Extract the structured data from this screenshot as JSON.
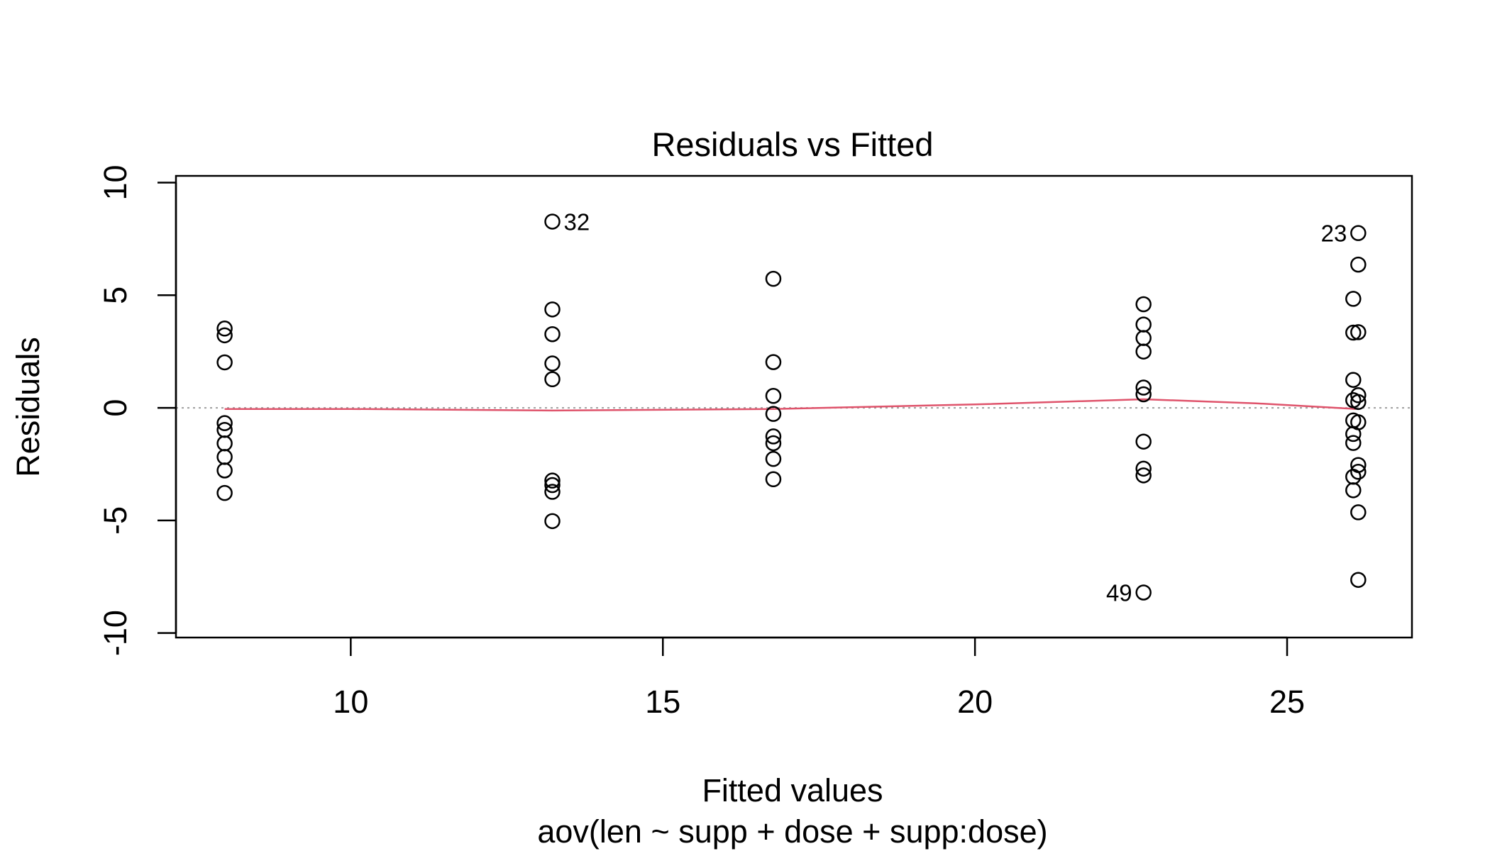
{
  "chart_data": {
    "type": "scatter",
    "title": "Residuals vs Fitted",
    "xlabel": "Fitted values",
    "ylabel": "Residuals",
    "caption": "aov(len ~ supp + dose + supp:dose)",
    "xlim": [
      7.2,
      27.0
    ],
    "ylim": [
      -10.2,
      10.3
    ],
    "x_ticks": [
      10,
      15,
      20,
      25
    ],
    "x_tick_labels": [
      "10",
      "15",
      "20",
      "25"
    ],
    "y_ticks": [
      -10,
      -5,
      0,
      5,
      10
    ],
    "y_tick_labels": [
      "-10",
      "-5",
      "0",
      "5",
      "10"
    ],
    "colors": {
      "points": "#000000",
      "smooth_line": "#DF536B",
      "zero_line": "#9E9E9E",
      "frame": "#000000"
    },
    "points": [
      {
        "x": 7.98,
        "y": 3.52
      },
      {
        "x": 7.98,
        "y": 3.22
      },
      {
        "x": 7.98,
        "y": 2.02
      },
      {
        "x": 7.98,
        "y": -0.68
      },
      {
        "x": 7.98,
        "y": -0.98
      },
      {
        "x": 7.98,
        "y": -1.58
      },
      {
        "x": 7.98,
        "y": -2.18
      },
      {
        "x": 7.98,
        "y": -2.78
      },
      {
        "x": 7.98,
        "y": -3.78
      },
      {
        "x": 13.23,
        "y": 8.27
      },
      {
        "x": 13.23,
        "y": 4.37
      },
      {
        "x": 13.23,
        "y": 3.27
      },
      {
        "x": 13.23,
        "y": 1.97
      },
      {
        "x": 13.23,
        "y": 1.27
      },
      {
        "x": 13.23,
        "y": -3.23
      },
      {
        "x": 13.23,
        "y": -3.43
      },
      {
        "x": 13.23,
        "y": -3.73
      },
      {
        "x": 13.23,
        "y": -5.03
      },
      {
        "x": 16.77,
        "y": 5.73
      },
      {
        "x": 16.77,
        "y": 2.03
      },
      {
        "x": 16.77,
        "y": 0.53
      },
      {
        "x": 16.77,
        "y": -0.27
      },
      {
        "x": 16.77,
        "y": -1.27
      },
      {
        "x": 16.77,
        "y": -1.57
      },
      {
        "x": 16.77,
        "y": -2.27
      },
      {
        "x": 16.77,
        "y": -3.17
      },
      {
        "x": 22.7,
        "y": 4.6
      },
      {
        "x": 22.7,
        "y": 3.7
      },
      {
        "x": 22.7,
        "y": 3.1
      },
      {
        "x": 22.7,
        "y": 2.5
      },
      {
        "x": 22.7,
        "y": 0.9
      },
      {
        "x": 22.7,
        "y": 0.6
      },
      {
        "x": 22.7,
        "y": -1.5
      },
      {
        "x": 22.7,
        "y": -2.7
      },
      {
        "x": 22.7,
        "y": -3.0
      },
      {
        "x": 22.7,
        "y": -8.2
      },
      {
        "x": 26.14,
        "y": 7.76
      },
      {
        "x": 26.14,
        "y": 6.36
      },
      {
        "x": 26.06,
        "y": 4.84
      },
      {
        "x": 26.06,
        "y": 3.34
      },
      {
        "x": 26.14,
        "y": 3.36
      },
      {
        "x": 26.06,
        "y": 1.24
      },
      {
        "x": 26.14,
        "y": 0.56
      },
      {
        "x": 26.06,
        "y": 0.34
      },
      {
        "x": 26.14,
        "y": 0.26
      },
      {
        "x": 26.06,
        "y": -0.56
      },
      {
        "x": 26.14,
        "y": -0.64
      },
      {
        "x": 26.06,
        "y": -1.16
      },
      {
        "x": 26.06,
        "y": -1.56
      },
      {
        "x": 26.14,
        "y": -2.54
      },
      {
        "x": 26.14,
        "y": -2.84
      },
      {
        "x": 26.06,
        "y": -3.06
      },
      {
        "x": 26.06,
        "y": -3.66
      },
      {
        "x": 26.14,
        "y": -4.64
      },
      {
        "x": 26.14,
        "y": -7.64
      }
    ],
    "point_labels": [
      {
        "text": "32",
        "x": 13.23,
        "y": 8.27,
        "side": "right"
      },
      {
        "text": "23",
        "x": 26.14,
        "y": 7.76,
        "side": "left"
      },
      {
        "text": "49",
        "x": 22.7,
        "y": -8.2,
        "side": "left"
      }
    ],
    "smooth_line": [
      {
        "x": 7.98,
        "y": -0.05
      },
      {
        "x": 10.0,
        "y": -0.05
      },
      {
        "x": 13.23,
        "y": -0.12
      },
      {
        "x": 16.77,
        "y": -0.05
      },
      {
        "x": 20.0,
        "y": 0.15
      },
      {
        "x": 22.7,
        "y": 0.38
      },
      {
        "x": 24.5,
        "y": 0.2
      },
      {
        "x": 26.1,
        "y": -0.05
      }
    ],
    "reference_line_y": 0
  }
}
